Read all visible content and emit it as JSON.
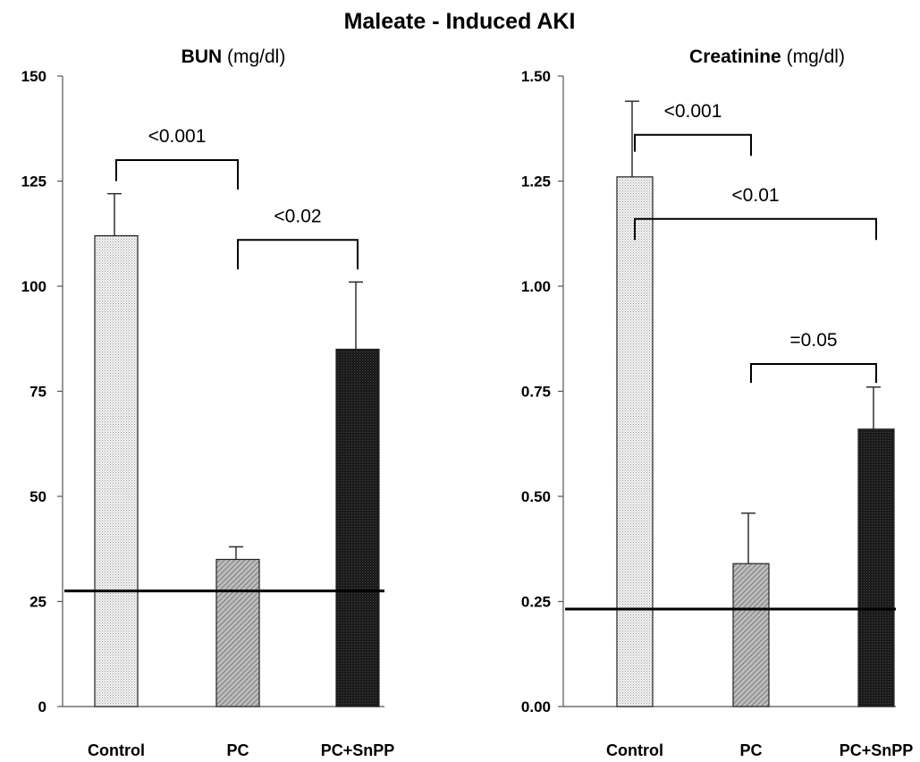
{
  "figure_title": "Maleate - Induced AKI",
  "chart_data": [
    {
      "type": "bar",
      "title_bold": "BUN",
      "title_unit": "(mg/dl)",
      "categories": [
        "Control",
        "PC",
        "PC+SnPP"
      ],
      "values": [
        112,
        35,
        85
      ],
      "errors": [
        10,
        3,
        16
      ],
      "fills": [
        "dots",
        "diag",
        "dark"
      ],
      "ylim": [
        0,
        150
      ],
      "yticks": [
        0,
        25,
        50,
        75,
        100,
        125,
        150
      ],
      "ytick_labels": [
        "0",
        "25",
        "50",
        "75",
        "100",
        "125",
        "150"
      ],
      "reference_line": 27.5,
      "comparisons": [
        {
          "from": 0,
          "to": 1,
          "label": "<0.001",
          "bracket_y": 130,
          "left_drop": 125,
          "right_drop": 123
        },
        {
          "from": 1,
          "to": 2,
          "label": "<0.02",
          "bracket_y": 111,
          "left_drop": 104,
          "right_drop": 104
        }
      ]
    },
    {
      "type": "bar",
      "title_bold": "Creatinine",
      "title_unit": "(mg/dl)",
      "categories": [
        "Control",
        "PC",
        "PC+SnPP"
      ],
      "values": [
        1.26,
        0.34,
        0.66
      ],
      "errors": [
        0.18,
        0.12,
        0.1
      ],
      "fills": [
        "dots",
        "diag",
        "dark"
      ],
      "ylim": [
        0,
        1.5
      ],
      "yticks": [
        0,
        0.25,
        0.5,
        0.75,
        1.0,
        1.25,
        1.5
      ],
      "ytick_labels": [
        "0.00",
        "0.25",
        "0.50",
        "0.75",
        "1.00",
        "1.25",
        "1.50"
      ],
      "reference_line": 0.232,
      "comparisons": [
        {
          "from": 0,
          "to": 1,
          "label": "<0.001",
          "bracket_y": 1.36,
          "left_drop": 1.32,
          "right_drop": 1.31
        },
        {
          "from": 0,
          "to": 2,
          "label": "<0.01",
          "bracket_y": 1.16,
          "left_drop": 1.11,
          "right_drop": 1.11
        },
        {
          "from": 1,
          "to": 2,
          "label": "=0.05",
          "bracket_y": 0.815,
          "left_drop": 0.77,
          "right_drop": 0.77
        }
      ]
    }
  ]
}
